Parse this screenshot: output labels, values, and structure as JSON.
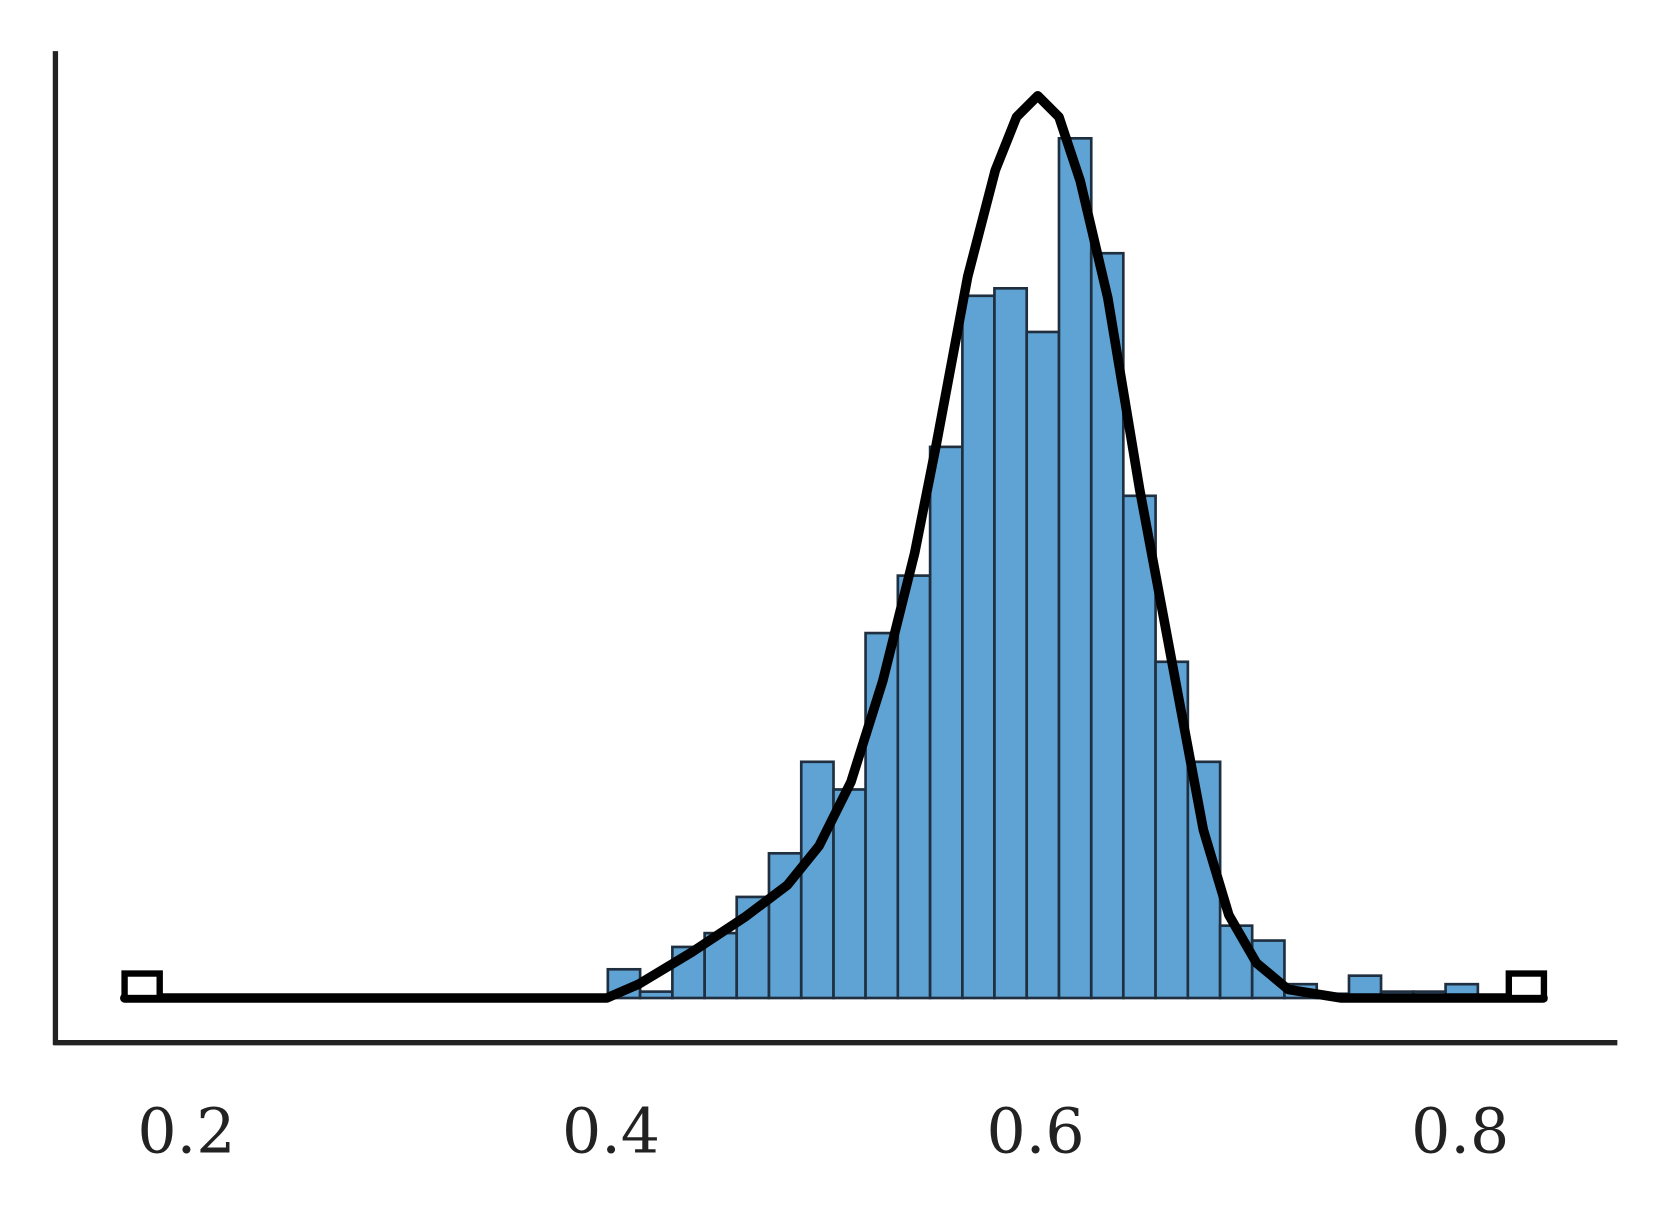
{
  "chart_data": {
    "type": "histogram",
    "bins": [
      0.1709,
      0.1861,
      0.2013,
      0.2164,
      0.2316,
      0.2468,
      0.262,
      0.2771,
      0.2923,
      0.3075,
      0.3227,
      0.3378,
      0.353,
      0.3682,
      0.3834,
      0.3985,
      0.4137,
      0.4289,
      0.4441,
      0.4592,
      0.4744,
      0.4896,
      0.5048,
      0.5199,
      0.5351,
      0.5503,
      0.5655,
      0.5806,
      0.5958,
      0.611,
      0.6262,
      0.6413,
      0.6565,
      0.6717,
      0.6869,
      0.702,
      0.7172,
      0.7324,
      0.7476,
      0.7627,
      0.7779,
      0.7931,
      0.8083,
      0.8234,
      0.8386
    ],
    "values": [
      0,
      0,
      0,
      0,
      0,
      0,
      0,
      0,
      0,
      0.02,
      0,
      0.02,
      0,
      0,
      0,
      0.27,
      0.06,
      0.48,
      0.61,
      0.95,
      1.36,
      2.22,
      1.96,
      3.43,
      3.97,
      5.18,
      6.6,
      6.67,
      6.26,
      8.08,
      7.0,
      4.72,
      3.16,
      2.22,
      0.68,
      0.54,
      0.13,
      0.04,
      0.21,
      0.06,
      0.06,
      0.13,
      0,
      0
    ],
    "color": "#5fa3d4",
    "edgecolor": "#1f2f3f",
    "curve": {
      "x": [
        0.171,
        0.398,
        0.413,
        0.438,
        0.463,
        0.483,
        0.498,
        0.513,
        0.528,
        0.543,
        0.553,
        0.568,
        0.581,
        0.591,
        0.601,
        0.611,
        0.621,
        0.634,
        0.649,
        0.664,
        0.679,
        0.691,
        0.704,
        0.719,
        0.744,
        0.839
      ],
      "y": [
        0,
        0,
        0.13,
        0.43,
        0.76,
        1.06,
        1.43,
        2.03,
        2.98,
        4.18,
        5.18,
        6.78,
        7.78,
        8.28,
        8.48,
        8.28,
        7.68,
        6.58,
        4.78,
        3.18,
        1.58,
        0.78,
        0.33,
        0.08,
        0,
        0
      ],
      "color": "#000000"
    },
    "xlim": [
      0.1373,
      0.874
    ],
    "ylim": [
      -0.42,
      8.9
    ],
    "xticks": [
      0.2,
      0.4,
      0.6,
      0.8
    ]
  }
}
